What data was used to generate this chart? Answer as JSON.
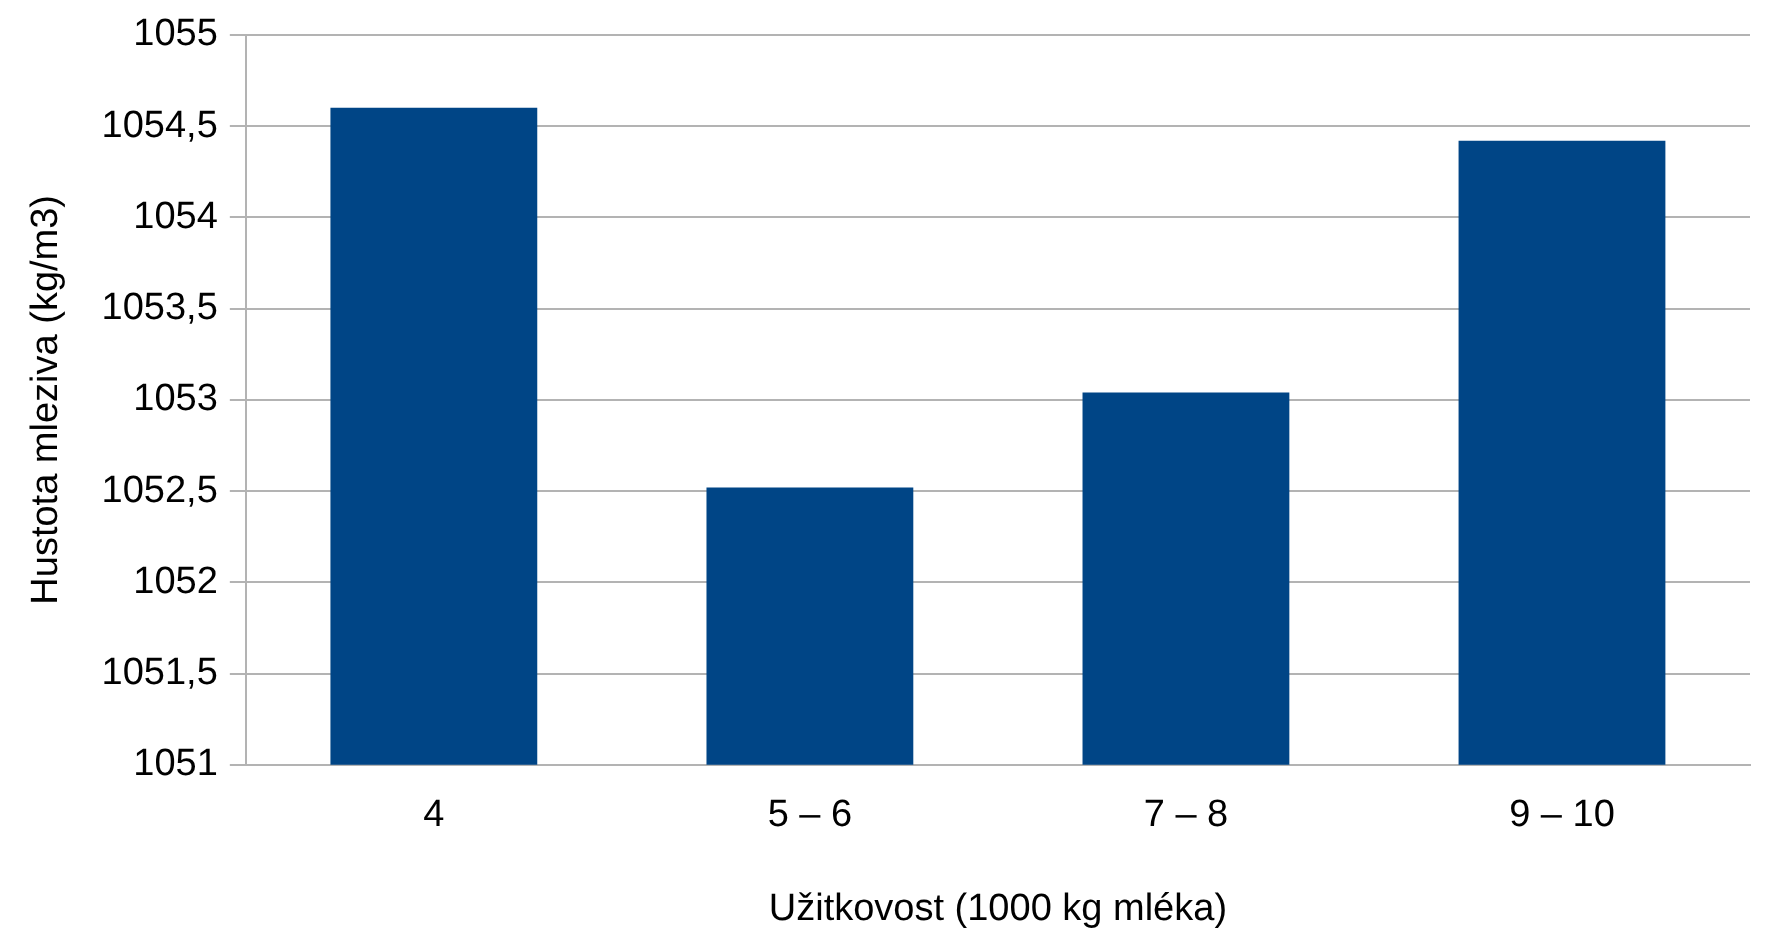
{
  "chart_data": {
    "type": "bar",
    "xlabel": "Užitkovost (1000 kg mléka)",
    "ylabel": "Hustota mleziva (kg/m3)",
    "categories": [
      "4",
      "5 – 6",
      "7 – 8",
      "9 – 10"
    ],
    "values": [
      1054.6,
      1052.52,
      1053.04,
      1054.42
    ],
    "color": "#004586",
    "ylim": [
      1051,
      1055
    ],
    "yticks": [
      1051,
      {
        "value": 1051.5,
        "label": "1051,5"
      },
      1052,
      {
        "value": 1052.5,
        "label": "1052,5"
      },
      1053,
      {
        "value": 1053.5,
        "label": "1053,5"
      },
      1054,
      {
        "value": 1054.5,
        "label": "1054,5"
      },
      1055
    ],
    "grid": "y",
    "legend": false
  }
}
